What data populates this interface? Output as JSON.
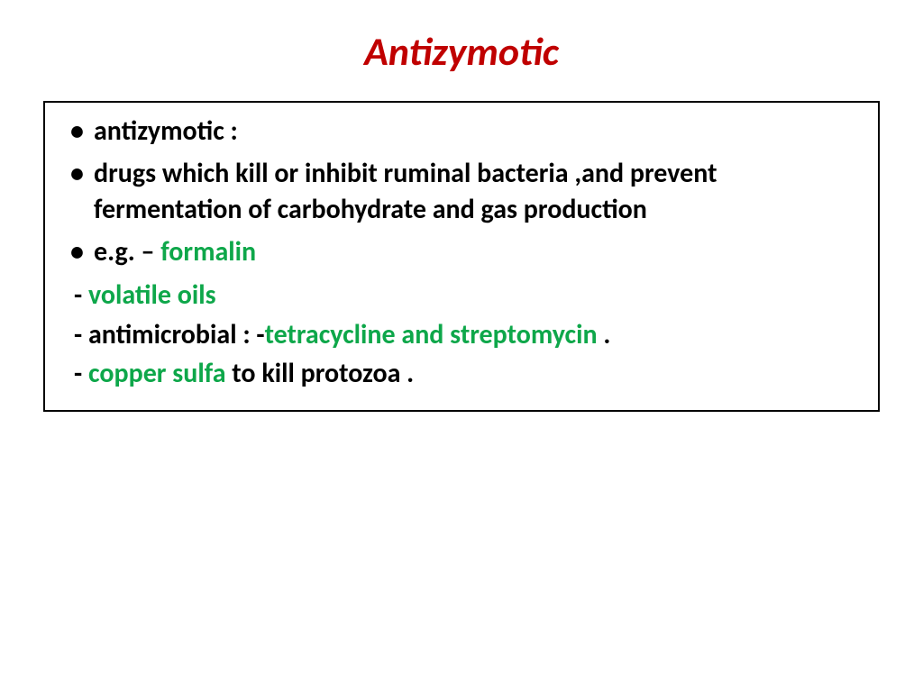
{
  "colors": {
    "title": "#c00000",
    "text": "#000000",
    "highlight": "#0ea74a",
    "border": "#000000",
    "background": "#ffffff"
  },
  "typography": {
    "title_fontsize": 44,
    "title_style": "italic bold",
    "body_fontsize": 30,
    "body_weight": "bold",
    "family": "Calibri"
  },
  "title": "Antizymotic",
  "bullets": {
    "b1": "antizymotic :",
    "b2": "drugs which kill or inhibit ruminal bacteria ,and prevent fermentation of carbohydrate and gas production",
    "b3_prefix": "e.g.  – ",
    "b3_green": "formalin"
  },
  "lines": {
    "l1_dash": " - ",
    "l1_green": "volatile oils",
    "l2_dash": " - ",
    "l2_black1": "antimicrobial : -",
    "l2_green": "tetracycline and streptomycin ",
    "l2_black2": ".",
    "l3_dash": " - ",
    "l3_green": "copper sulfa ",
    "l3_black": "to kill protozoa ."
  }
}
